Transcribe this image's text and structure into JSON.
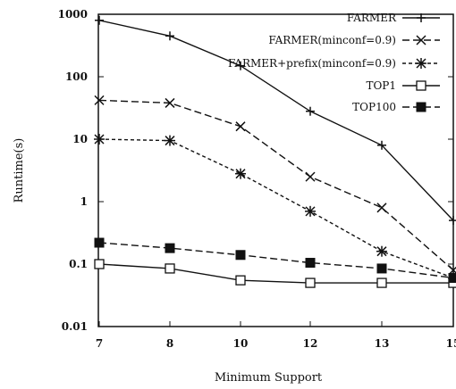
{
  "chart_data": {
    "type": "line",
    "xlabel": "Minimum Support",
    "ylabel": "Runtime(s)",
    "ylog": true,
    "ylim": [
      0.01,
      1000
    ],
    "categories": [
      "7",
      "8",
      "10",
      "12",
      "13",
      "15"
    ],
    "yticks": [
      "1000",
      "100",
      "10",
      "1",
      "0.1",
      "0.01"
    ],
    "legend_position": "top-right",
    "grid": false,
    "series": [
      {
        "name": "FARMER",
        "marker": "plus",
        "dash": "solid",
        "values": [
          800,
          450,
          150,
          28,
          8,
          0.5
        ]
      },
      {
        "name": "FARMER(minconf=0.9)",
        "marker": "x",
        "dash": "long-dash",
        "values": [
          42,
          38,
          16,
          2.5,
          0.8,
          0.08
        ]
      },
      {
        "name": "FARMER+prefix(minconf=0.9)",
        "marker": "asterisk",
        "dash": "short-dash",
        "values": [
          10,
          9.5,
          2.8,
          0.7,
          0.16,
          0.06
        ]
      },
      {
        "name": "TOP1",
        "marker": "open-square",
        "dash": "solid",
        "values": [
          0.1,
          0.085,
          0.055,
          0.05,
          0.05,
          0.05
        ]
      },
      {
        "name": "TOP100",
        "marker": "filled-square",
        "dash": "long-dash",
        "values": [
          0.22,
          0.18,
          0.14,
          0.105,
          0.085,
          0.06
        ]
      }
    ]
  }
}
